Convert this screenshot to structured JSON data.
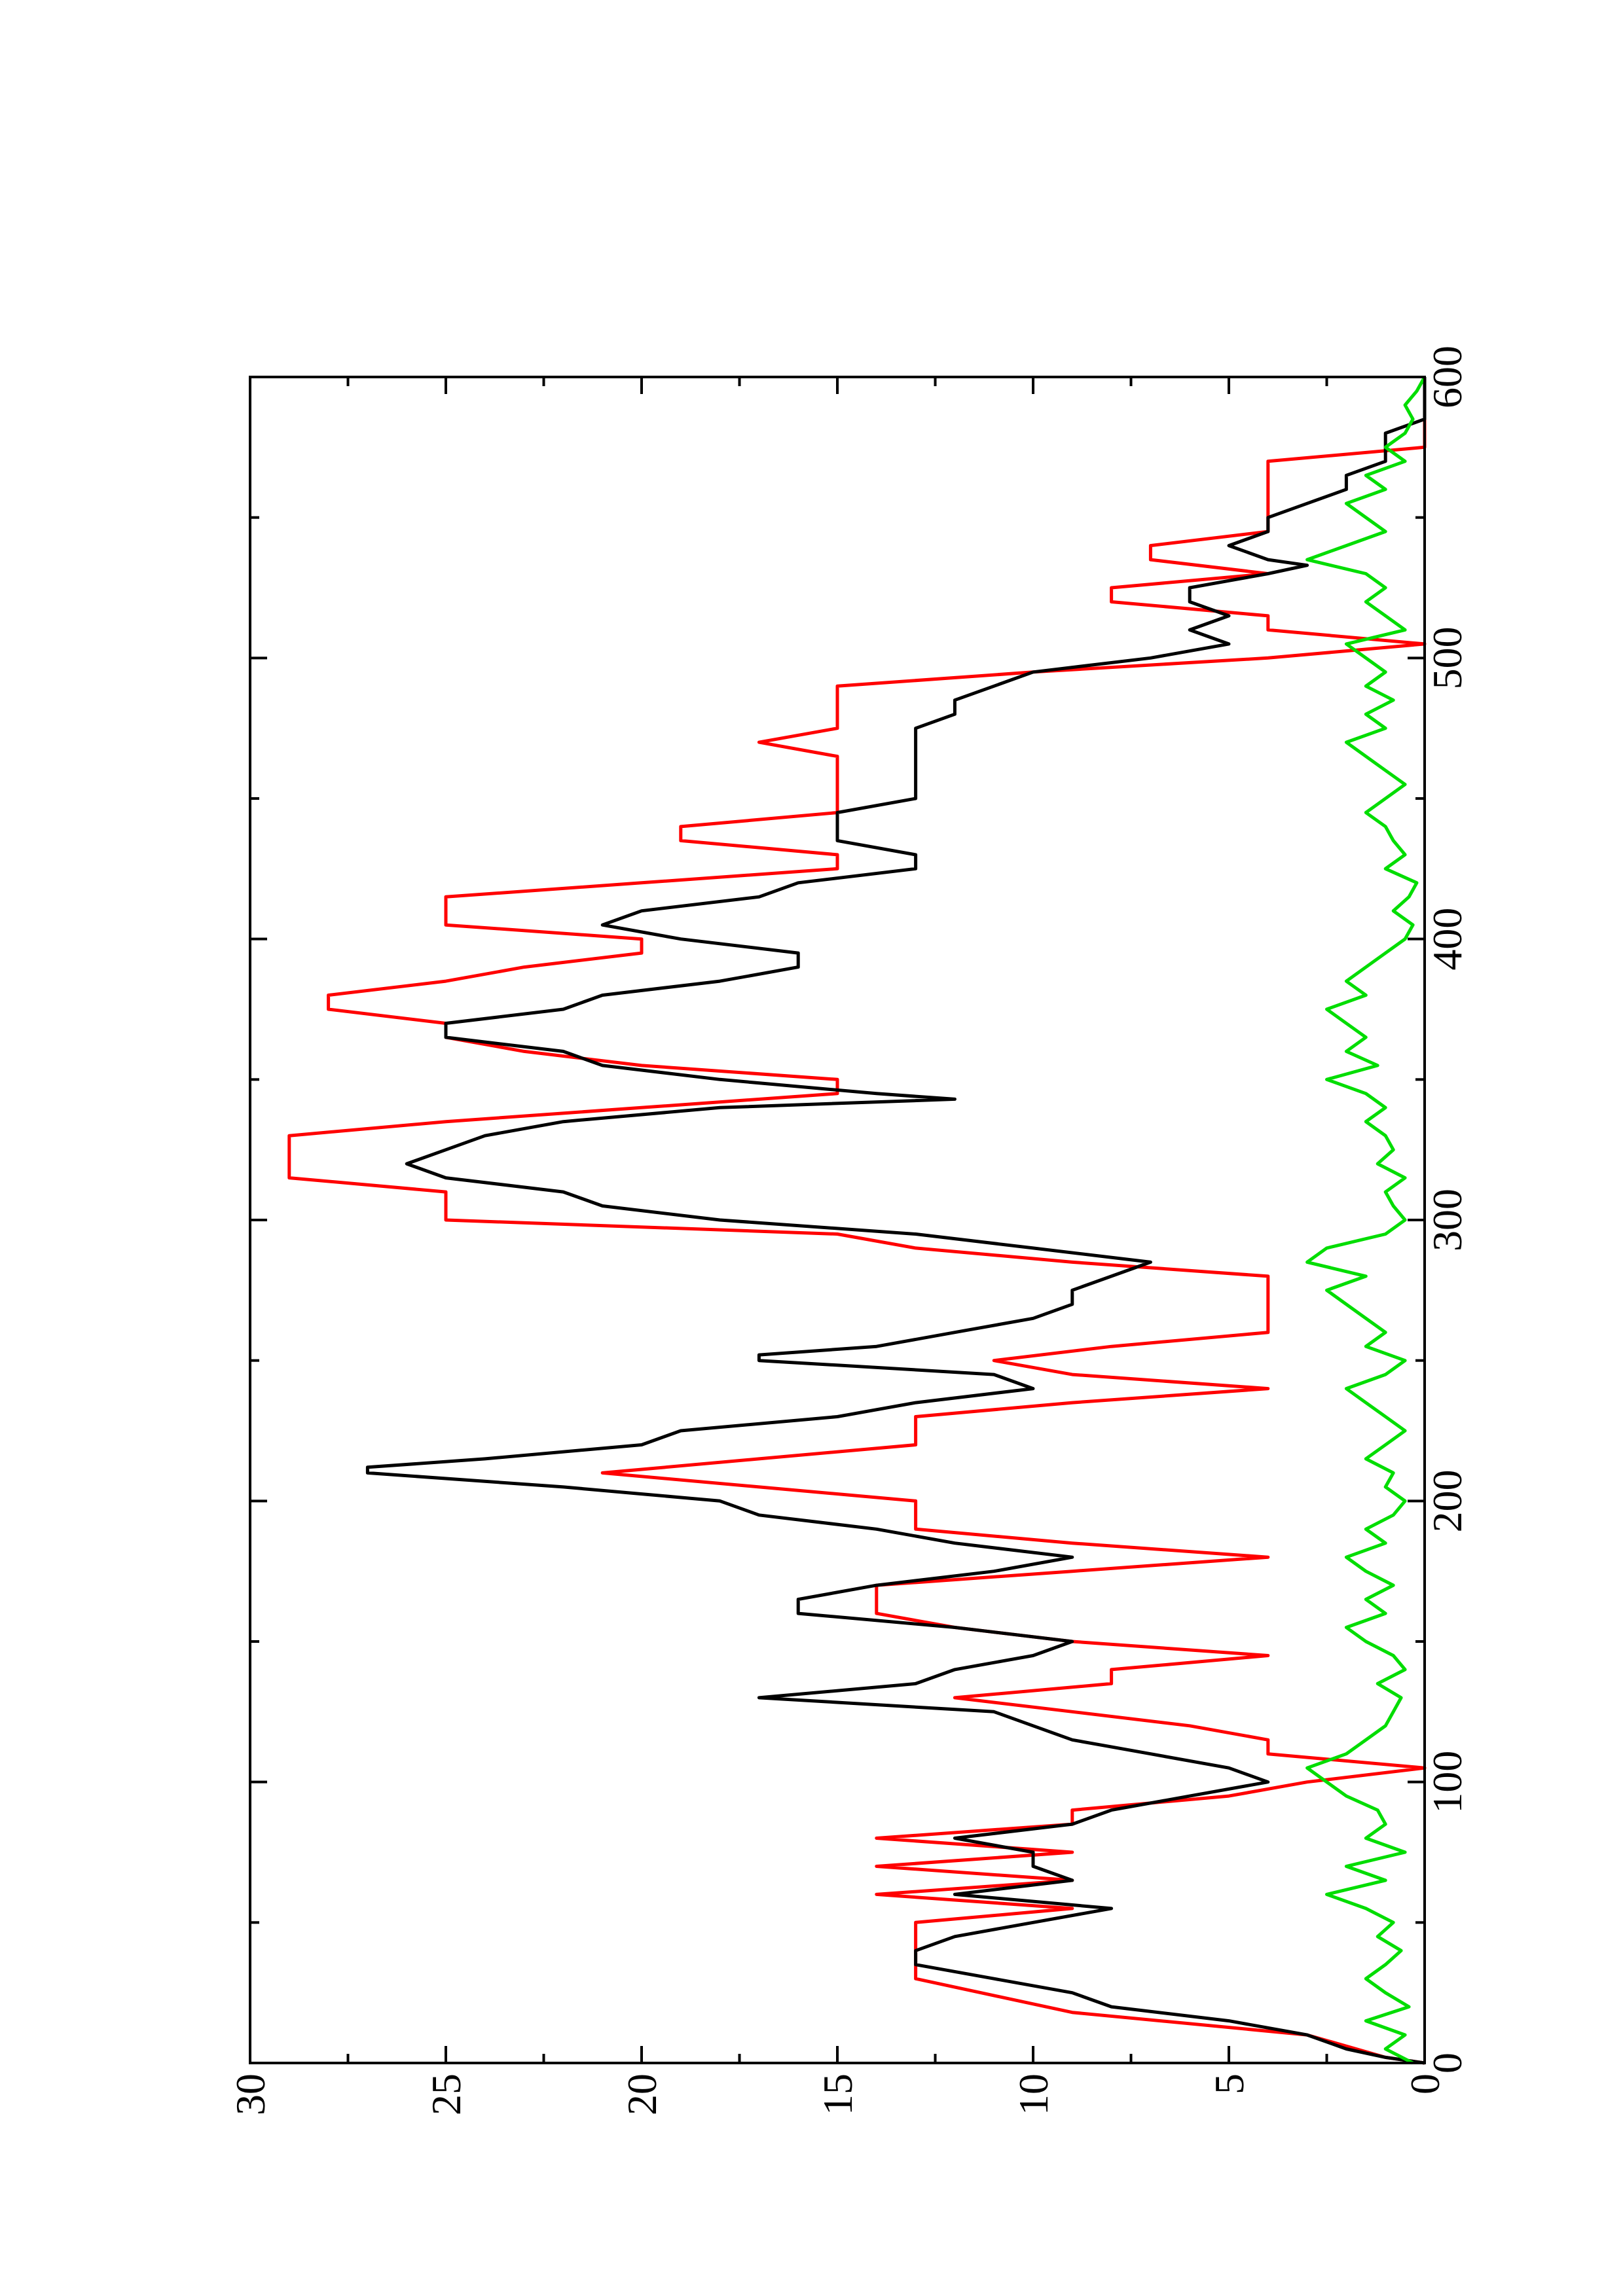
{
  "chart_data": {
    "type": "line",
    "title": "",
    "xlabel": "",
    "ylabel": "",
    "xlim": [
      0,
      600
    ],
    "ylim": [
      0,
      30
    ],
    "x_ticks": [
      0,
      100,
      200,
      300,
      400,
      500,
      600
    ],
    "x_tick_labels": [
      "0",
      "100",
      "200",
      "300",
      "400",
      "500",
      "600"
    ],
    "x_minor_ticks": [
      50,
      150,
      250,
      350,
      450,
      550
    ],
    "y_ticks": [
      0,
      5,
      10,
      15,
      20,
      25,
      30
    ],
    "y_tick_labels": [
      "0",
      "5",
      "10",
      "15",
      "20",
      "25",
      "30"
    ],
    "y_minor_ticks": [
      2.5,
      7.5,
      12.5,
      17.5,
      22.5,
      27.5
    ],
    "orientation": "rotated 90 degrees counter-clockwise on the page",
    "grid": false,
    "legend": "none",
    "series": [
      {
        "color": "#ff0000",
        "x": [
          0,
          2,
          10,
          18,
          30,
          40,
          50,
          55,
          60,
          65,
          70,
          75,
          80,
          85,
          90,
          95,
          100,
          105,
          110,
          115,
          120,
          125,
          130,
          135,
          140,
          145,
          150,
          155,
          160,
          165,
          170,
          175,
          180,
          185,
          190,
          195,
          200,
          205,
          210,
          215,
          220,
          225,
          230,
          235,
          240,
          245,
          250,
          255,
          260,
          265,
          270,
          275,
          280,
          285,
          290,
          295,
          300,
          305,
          310,
          315,
          320,
          325,
          330,
          335,
          340,
          345,
          350,
          355,
          360,
          365,
          370,
          375,
          380,
          385,
          390,
          395,
          400,
          405,
          410,
          415,
          420,
          425,
          430,
          435,
          440,
          445,
          450,
          455,
          460,
          465,
          470,
          475,
          480,
          485,
          490,
          495,
          500,
          505,
          510,
          515,
          520,
          525,
          530,
          535,
          540,
          545,
          550,
          555,
          560,
          565,
          570,
          575,
          580,
          585,
          590,
          595,
          600
        ],
        "y": [
          0,
          1,
          3,
          9,
          13,
          13,
          13,
          9,
          14,
          9,
          14,
          9,
          14,
          9,
          9,
          5,
          3,
          0,
          4,
          4,
          6,
          9,
          12,
          8,
          8,
          4,
          9,
          12,
          14,
          14,
          14,
          9,
          4,
          9,
          13,
          13,
          13,
          17,
          21,
          17,
          13,
          13,
          13,
          9,
          4,
          9,
          11,
          8,
          4,
          4,
          4,
          4,
          4,
          9,
          13,
          15,
          25,
          25,
          25,
          29,
          29,
          29,
          29,
          25,
          20,
          15,
          15,
          20,
          23,
          25,
          25,
          28,
          28,
          25,
          23,
          20,
          20,
          25,
          25,
          25,
          20,
          15,
          15,
          19,
          19,
          15,
          15,
          15,
          15,
          15,
          17,
          15,
          15,
          15,
          15,
          10,
          4,
          0,
          4,
          4,
          8,
          8,
          4,
          7,
          7,
          4,
          4,
          4,
          4,
          4,
          4,
          0,
          0,
          0,
          0,
          0,
          0
        ]
      },
      {
        "color": "#000000",
        "x": [
          0,
          2,
          5,
          10,
          15,
          20,
          25,
          30,
          35,
          40,
          45,
          50,
          55,
          60,
          65,
          70,
          75,
          80,
          85,
          90,
          95,
          100,
          105,
          110,
          115,
          120,
          125,
          130,
          135,
          140,
          145,
          150,
          155,
          160,
          165,
          170,
          175,
          180,
          185,
          190,
          195,
          200,
          205,
          210,
          212,
          215,
          220,
          225,
          230,
          235,
          240,
          245,
          250,
          252,
          255,
          260,
          265,
          270,
          275,
          280,
          285,
          290,
          295,
          300,
          305,
          310,
          315,
          320,
          325,
          330,
          335,
          340,
          343,
          345,
          350,
          355,
          360,
          365,
          370,
          375,
          380,
          385,
          390,
          395,
          400,
          405,
          410,
          415,
          420,
          425,
          430,
          435,
          440,
          445,
          450,
          455,
          460,
          465,
          470,
          475,
          480,
          485,
          490,
          495,
          500,
          505,
          510,
          515,
          520,
          525,
          530,
          533,
          535,
          540,
          545,
          550,
          555,
          560,
          565,
          570,
          575,
          580,
          585,
          590,
          595,
          600
        ],
        "y": [
          0,
          1,
          2,
          3,
          5,
          8,
          9,
          11,
          13,
          13,
          12,
          10,
          8,
          12,
          9,
          10,
          10,
          12,
          9,
          8,
          6,
          4,
          5,
          7,
          9,
          10,
          11,
          17,
          13,
          12,
          10,
          9,
          12,
          16,
          16,
          14,
          11,
          9,
          12,
          14,
          17,
          18,
          22,
          27,
          27,
          24,
          20,
          19,
          15,
          13,
          10,
          11,
          17,
          17,
          14,
          12,
          10,
          9,
          9,
          8,
          7,
          10,
          13,
          18,
          21,
          22,
          25,
          26,
          25,
          24,
          22,
          18,
          12,
          14,
          18,
          21,
          22,
          25,
          25,
          22,
          21,
          18,
          16,
          16,
          19,
          21,
          20,
          17,
          16,
          13,
          13,
          15,
          15,
          15,
          13,
          13,
          13,
          13,
          13,
          13,
          12,
          12,
          11,
          10,
          7,
          5,
          6,
          5,
          6,
          6,
          4,
          3,
          4,
          5,
          4,
          4,
          3,
          2,
          2,
          1,
          1,
          1,
          0,
          0,
          0,
          0
        ]
      },
      {
        "color": "#00dd00",
        "x": [
          0,
          5,
          10,
          15,
          20,
          25,
          30,
          35,
          40,
          45,
          50,
          55,
          60,
          65,
          70,
          75,
          80,
          85,
          90,
          95,
          100,
          105,
          110,
          115,
          120,
          125,
          130,
          135,
          140,
          145,
          150,
          155,
          160,
          165,
          170,
          175,
          180,
          185,
          190,
          195,
          200,
          205,
          210,
          215,
          220,
          225,
          230,
          235,
          240,
          245,
          250,
          255,
          260,
          265,
          270,
          275,
          280,
          285,
          290,
          295,
          300,
          305,
          310,
          315,
          320,
          325,
          330,
          335,
          340,
          345,
          350,
          355,
          360,
          365,
          370,
          375,
          380,
          385,
          390,
          395,
          400,
          405,
          410,
          415,
          420,
          425,
          430,
          435,
          440,
          445,
          450,
          455,
          460,
          465,
          470,
          475,
          480,
          485,
          490,
          495,
          500,
          505,
          510,
          515,
          520,
          525,
          530,
          535,
          540,
          545,
          550,
          555,
          560,
          565,
          570,
          575,
          580,
          585,
          590,
          595,
          600
        ],
        "y": [
          0.3,
          1.0,
          0.5,
          1.5,
          0.4,
          1.0,
          1.5,
          1.0,
          0.6,
          1.2,
          0.8,
          1.5,
          2.5,
          1.0,
          2.0,
          0.5,
          1.5,
          1.0,
          1.2,
          2.0,
          2.5,
          3.0,
          2.0,
          1.5,
          1.0,
          0.8,
          0.6,
          1.2,
          0.5,
          0.8,
          1.5,
          2.0,
          1.0,
          1.5,
          0.8,
          1.5,
          2.0,
          1.0,
          1.5,
          0.8,
          0.5,
          1.0,
          0.8,
          1.5,
          1.0,
          0.5,
          1.0,
          1.5,
          2.0,
          1.0,
          0.5,
          1.5,
          1.0,
          1.5,
          2.0,
          2.5,
          1.5,
          3.0,
          2.5,
          1.0,
          0.5,
          0.8,
          1.0,
          0.5,
          1.2,
          0.8,
          1.0,
          1.5,
          1.0,
          1.5,
          2.5,
          1.2,
          2.0,
          1.5,
          2.0,
          2.5,
          1.5,
          2.0,
          1.5,
          1.0,
          0.5,
          0.3,
          0.8,
          0.4,
          0.2,
          1.0,
          0.5,
          0.8,
          1.0,
          1.5,
          1.0,
          0.5,
          1.0,
          1.5,
          2.0,
          1.0,
          1.5,
          0.8,
          1.5,
          1.0,
          1.5,
          2.0,
          0.5,
          1.0,
          1.5,
          1.0,
          1.5,
          3.0,
          2.0,
          1.0,
          1.5,
          2.0,
          1.0,
          1.5,
          0.5,
          1.0,
          0.5,
          0.3,
          0.5,
          0.2,
          0.0
        ]
      }
    ]
  }
}
